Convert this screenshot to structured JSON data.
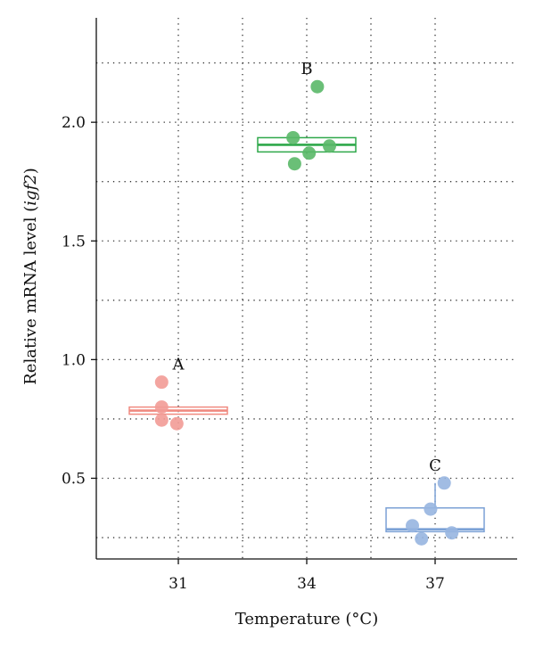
{
  "chart_data": {
    "type": "boxplot",
    "xlabel": "Temperature (°C)",
    "ylabel_prefix": "Relative mRNA level (",
    "ylabel_gene": "igf2",
    "ylabel_suffix": ")",
    "ylim": [
      0.16,
      2.44
    ],
    "y_ticks": [
      0.5,
      1.0,
      1.5,
      2.0
    ],
    "y_tick_labels": [
      "0.5",
      "1.0",
      "1.5",
      "2.0"
    ],
    "y_minor_gridlines": [
      0.25,
      0.75,
      1.25,
      1.75,
      2.25
    ],
    "categories": [
      "31",
      "34",
      "37"
    ],
    "grid": true,
    "groups": [
      {
        "category": "31",
        "letter": "A",
        "color": "#f08a80",
        "dot_color": "#f29b96",
        "box": {
          "q1": 0.77,
          "median": 0.785,
          "q3": 0.8,
          "whisker_low": 0.77,
          "whisker_high": 0.8
        },
        "points": [
          {
            "offset": -0.55,
            "y": 0.905
          },
          {
            "offset": -0.55,
            "y": 0.8
          },
          {
            "offset": -0.55,
            "y": 0.745
          },
          {
            "offset": -0.05,
            "y": 0.73
          }
        ]
      },
      {
        "category": "34",
        "letter": "B",
        "color": "#2ea84a",
        "dot_color": "#5ab868",
        "box": {
          "q1": 1.875,
          "median": 1.905,
          "q3": 1.935,
          "whisker_low": 1.875,
          "whisker_high": 1.935
        },
        "points": [
          {
            "offset": 0.35,
            "y": 2.15
          },
          {
            "offset": -0.45,
            "y": 1.935
          },
          {
            "offset": 0.08,
            "y": 1.87
          },
          {
            "offset": 0.75,
            "y": 1.9
          },
          {
            "offset": -0.4,
            "y": 1.825
          }
        ]
      },
      {
        "category": "37",
        "letter": "C",
        "color": "#7ba1d6",
        "dot_color": "#97b5e0",
        "box": {
          "q1": 0.275,
          "median": 0.285,
          "q3": 0.375,
          "whisker_low": 0.275,
          "whisker_high": 0.48
        },
        "points": [
          {
            "offset": 0.3,
            "y": 0.48
          },
          {
            "offset": -0.15,
            "y": 0.37
          },
          {
            "offset": -0.75,
            "y": 0.3
          },
          {
            "offset": 0.55,
            "y": 0.27
          },
          {
            "offset": -0.45,
            "y": 0.245
          }
        ]
      }
    ]
  }
}
